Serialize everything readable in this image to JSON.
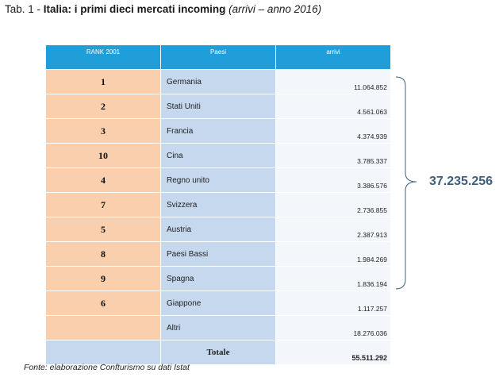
{
  "caption": {
    "prefix": "Tab. 1 - ",
    "title": "Italia: i primi dieci mercati incoming",
    "sub": "(arrivi – anno 2016)"
  },
  "table": {
    "headers": {
      "rank": "RANK 2001",
      "paese": "Paesi",
      "arrivi": "arrivi"
    },
    "rows": [
      {
        "rank": "1",
        "paese": "Germania",
        "arrivi": "11.064.852"
      },
      {
        "rank": "2",
        "paese": "Stati Uniti",
        "arrivi": "4.561.063"
      },
      {
        "rank": "3",
        "paese": "Francia",
        "arrivi": "4.374.939"
      },
      {
        "rank": "10",
        "paese": "Cina",
        "arrivi": "3.785.337"
      },
      {
        "rank": "4",
        "paese": "Regno unito",
        "arrivi": "3.386.576"
      },
      {
        "rank": "7",
        "paese": "Svizzera",
        "arrivi": "2.736.855"
      },
      {
        "rank": "5",
        "paese": "Austria",
        "arrivi": "2.387.913"
      },
      {
        "rank": "8",
        "paese": "Paesi Bassi",
        "arrivi": "1.984.269"
      },
      {
        "rank": "9",
        "paese": "Spagna",
        "arrivi": "1.836.194"
      },
      {
        "rank": "6",
        "paese": "Giappone",
        "arrivi": "1.117.257"
      },
      {
        "rank": "",
        "paese": "Altri",
        "arrivi": "18.276.036"
      }
    ],
    "total": {
      "label": "Totale",
      "value": "55.511.292"
    }
  },
  "top10_sum": "37.235.256",
  "source": "Fonte: elaborazione Confturismo su dati Istat",
  "colors": {
    "header": "#1f9ed9",
    "rank_bg": "#f9cfad",
    "paese_bg": "#c6d8ee",
    "arrivi_bg": "#f3f6fb",
    "sum_text": "#3d5f7d"
  }
}
